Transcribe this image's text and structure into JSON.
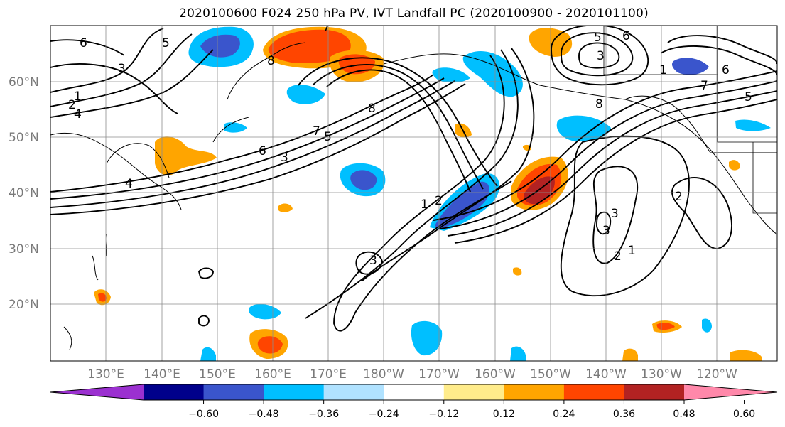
{
  "map": {
    "title": "2020100600 F024 250 hPa PV, IVT Landfall PC (2020100900 - 2020101100)",
    "lat_labels": [
      "60°N",
      "50°N",
      "40°N",
      "30°N",
      "20°N"
    ],
    "lon_labels": [
      "130°E",
      "140°E",
      "150°E",
      "160°E",
      "170°E",
      "180°W",
      "170°W",
      "160°W",
      "150°W",
      "140°W",
      "130°W",
      "120°W"
    ],
    "contour_labels": [
      "6",
      "5",
      "3",
      "1",
      "2",
      "4",
      "8",
      "7",
      "6",
      "3",
      "4",
      "8",
      "7",
      "5",
      "1",
      "2",
      "3",
      "3",
      "3",
      "2",
      "1",
      "3",
      "6",
      "5",
      "1",
      "7",
      "5",
      "6",
      "8",
      "2"
    ],
    "colorbar": {
      "ticks": [
        "−0.60",
        "−0.48",
        "−0.36",
        "−0.24",
        "−0.12",
        "0.12",
        "0.24",
        "0.36",
        "0.48",
        "0.60"
      ],
      "colors": [
        "#9b30d0",
        "#00008b",
        "#3a55cc",
        "#00bfff",
        "#b0e2ff",
        "#ffffff",
        "#ffec8b",
        "#ffa500",
        "#ff4500",
        "#b22222",
        "#ff88aa"
      ]
    }
  }
}
